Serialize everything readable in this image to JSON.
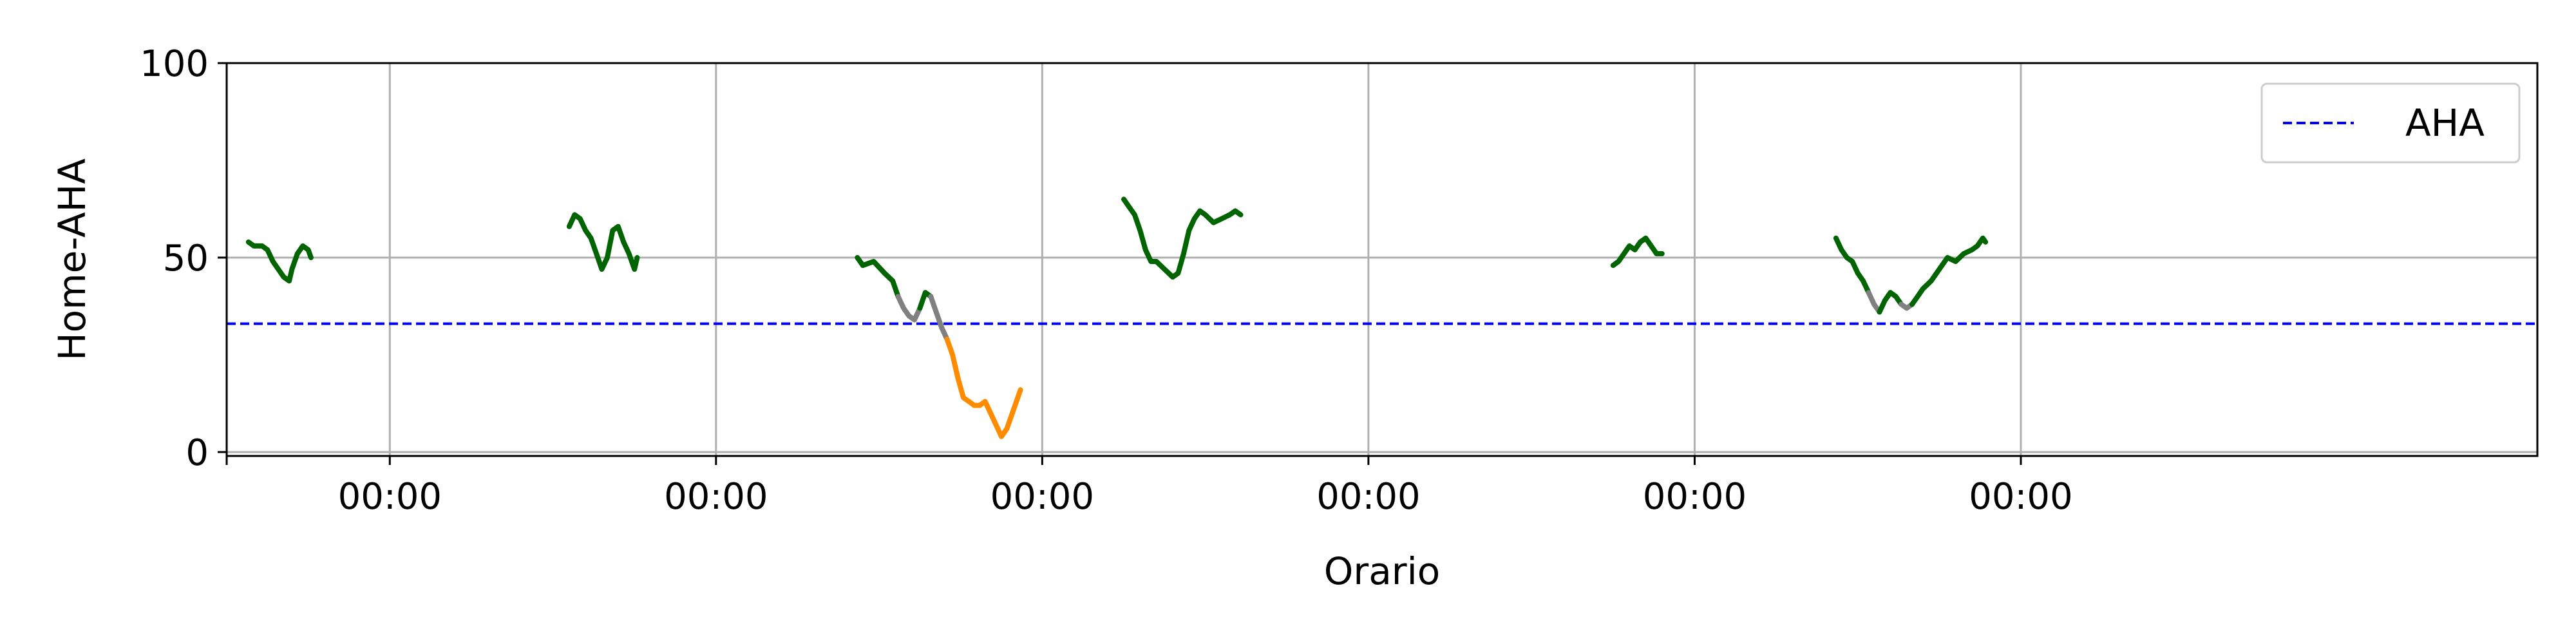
{
  "chart_data": {
    "type": "line",
    "title": "",
    "xlabel": "Orario",
    "ylabel": "Home-AHA",
    "xlim": [
      -18,
      24.5
    ],
    "ylim": [
      -1,
      100
    ],
    "x_ticks": [
      {
        "value": -18,
        "label": ""
      },
      {
        "value": -15,
        "label": "00:00"
      },
      {
        "value": -9,
        "label": "00:00"
      },
      {
        "value": -3,
        "label": "00:00"
      },
      {
        "value": 3,
        "label": "00:00"
      },
      {
        "value": 9,
        "label": "00:00"
      },
      {
        "value": 15,
        "label": "00:00"
      }
    ],
    "y_ticks": [
      {
        "value": 0,
        "label": "0"
      },
      {
        "value": 50,
        "label": "50"
      },
      {
        "value": 100,
        "label": "100"
      }
    ],
    "grid": true,
    "legend": {
      "placement": "top-right",
      "entries": [
        "AHA"
      ]
    },
    "threshold": {
      "name": "AHA",
      "value": 33,
      "color": "#0000ff",
      "style": "dashed"
    },
    "series": [
      {
        "color": "#006400",
        "points": [
          [
            -17.6,
            54
          ],
          [
            -17.5,
            53
          ],
          [
            -17.35,
            53
          ],
          [
            -17.25,
            52
          ],
          [
            -17.15,
            49
          ],
          [
            -17.05,
            47
          ],
          [
            -16.95,
            45
          ],
          [
            -16.85,
            44
          ],
          [
            -16.8,
            47
          ],
          [
            -16.7,
            51
          ],
          [
            -16.6,
            53
          ],
          [
            -16.5,
            52
          ],
          [
            -16.45,
            50
          ]
        ]
      },
      {
        "color": "#006400",
        "points": [
          [
            -11.7,
            58
          ],
          [
            -11.6,
            61
          ],
          [
            -11.5,
            60
          ],
          [
            -11.4,
            57
          ],
          [
            -11.3,
            55
          ],
          [
            -11.2,
            51
          ],
          [
            -11.1,
            47
          ],
          [
            -11.0,
            50
          ],
          [
            -10.9,
            57
          ],
          [
            -10.8,
            58
          ],
          [
            -10.7,
            54
          ],
          [
            -10.6,
            51
          ],
          [
            -10.5,
            47
          ],
          [
            -10.45,
            50
          ]
        ]
      },
      {
        "color": "#006400",
        "points": [
          [
            -6.4,
            50
          ],
          [
            -6.3,
            48
          ],
          [
            -6.1,
            49
          ],
          [
            -5.9,
            46
          ],
          [
            -5.75,
            44
          ],
          [
            -5.65,
            40
          ]
        ]
      },
      {
        "color": "#808080",
        "points": [
          [
            -5.65,
            40
          ],
          [
            -5.55,
            37
          ],
          [
            -5.45,
            35
          ],
          [
            -5.35,
            34
          ],
          [
            -5.25,
            37
          ]
        ]
      },
      {
        "color": "#006400",
        "points": [
          [
            -5.25,
            37
          ],
          [
            -5.15,
            41
          ],
          [
            -5.05,
            40
          ]
        ]
      },
      {
        "color": "#808080",
        "points": [
          [
            -5.05,
            40
          ],
          [
            -4.95,
            36
          ],
          [
            -4.85,
            32
          ],
          [
            -4.75,
            29
          ]
        ]
      },
      {
        "color": "#ff8c00",
        "points": [
          [
            -4.75,
            29
          ],
          [
            -4.65,
            25
          ],
          [
            -4.55,
            19
          ],
          [
            -4.45,
            14
          ],
          [
            -4.35,
            13
          ],
          [
            -4.25,
            12
          ],
          [
            -4.15,
            12
          ],
          [
            -4.05,
            13
          ],
          [
            -3.95,
            10
          ],
          [
            -3.85,
            7
          ],
          [
            -3.75,
            4
          ],
          [
            -3.65,
            6
          ],
          [
            -3.55,
            10
          ],
          [
            -3.45,
            14
          ],
          [
            -3.4,
            16
          ]
        ]
      },
      {
        "color": "#006400",
        "points": [
          [
            -1.5,
            65
          ],
          [
            -1.4,
            63
          ],
          [
            -1.3,
            61
          ],
          [
            -1.2,
            57
          ],
          [
            -1.1,
            52
          ],
          [
            -1.0,
            49
          ],
          [
            -0.9,
            49
          ],
          [
            -0.75,
            47
          ],
          [
            -0.6,
            45
          ],
          [
            -0.5,
            46
          ],
          [
            -0.4,
            51
          ],
          [
            -0.3,
            57
          ],
          [
            -0.2,
            60
          ],
          [
            -0.1,
            62
          ],
          [
            0.0,
            61
          ],
          [
            0.15,
            59
          ],
          [
            0.3,
            60
          ],
          [
            0.45,
            61
          ],
          [
            0.55,
            62
          ],
          [
            0.65,
            61
          ]
        ]
      },
      {
        "color": "#006400",
        "points": [
          [
            7.5,
            48
          ],
          [
            7.6,
            49
          ],
          [
            7.7,
            51
          ],
          [
            7.8,
            53
          ],
          [
            7.9,
            52
          ],
          [
            8.0,
            54
          ],
          [
            8.1,
            55
          ],
          [
            8.2,
            53
          ],
          [
            8.3,
            51
          ],
          [
            8.4,
            51
          ]
        ]
      },
      {
        "color": "#006400",
        "points": [
          [
            11.6,
            55
          ],
          [
            11.7,
            52
          ],
          [
            11.8,
            50
          ],
          [
            11.9,
            49
          ],
          [
            12.0,
            46
          ],
          [
            12.1,
            44
          ],
          [
            12.2,
            41
          ]
        ]
      },
      {
        "color": "#808080",
        "points": [
          [
            12.2,
            41
          ],
          [
            12.3,
            38
          ],
          [
            12.4,
            36
          ]
        ]
      },
      {
        "color": "#006400",
        "points": [
          [
            12.4,
            36
          ],
          [
            12.5,
            39
          ],
          [
            12.6,
            41
          ],
          [
            12.7,
            40
          ],
          [
            12.8,
            38
          ]
        ]
      },
      {
        "color": "#808080",
        "points": [
          [
            12.8,
            38
          ],
          [
            12.9,
            37
          ],
          [
            13.0,
            38
          ]
        ]
      },
      {
        "color": "#006400",
        "points": [
          [
            13.0,
            38
          ],
          [
            13.1,
            40
          ],
          [
            13.2,
            42
          ],
          [
            13.35,
            44
          ],
          [
            13.5,
            47
          ],
          [
            13.65,
            50
          ],
          [
            13.8,
            49
          ],
          [
            13.95,
            51
          ],
          [
            14.1,
            52
          ],
          [
            14.2,
            53
          ],
          [
            14.3,
            55
          ],
          [
            14.35,
            54
          ]
        ]
      }
    ]
  }
}
